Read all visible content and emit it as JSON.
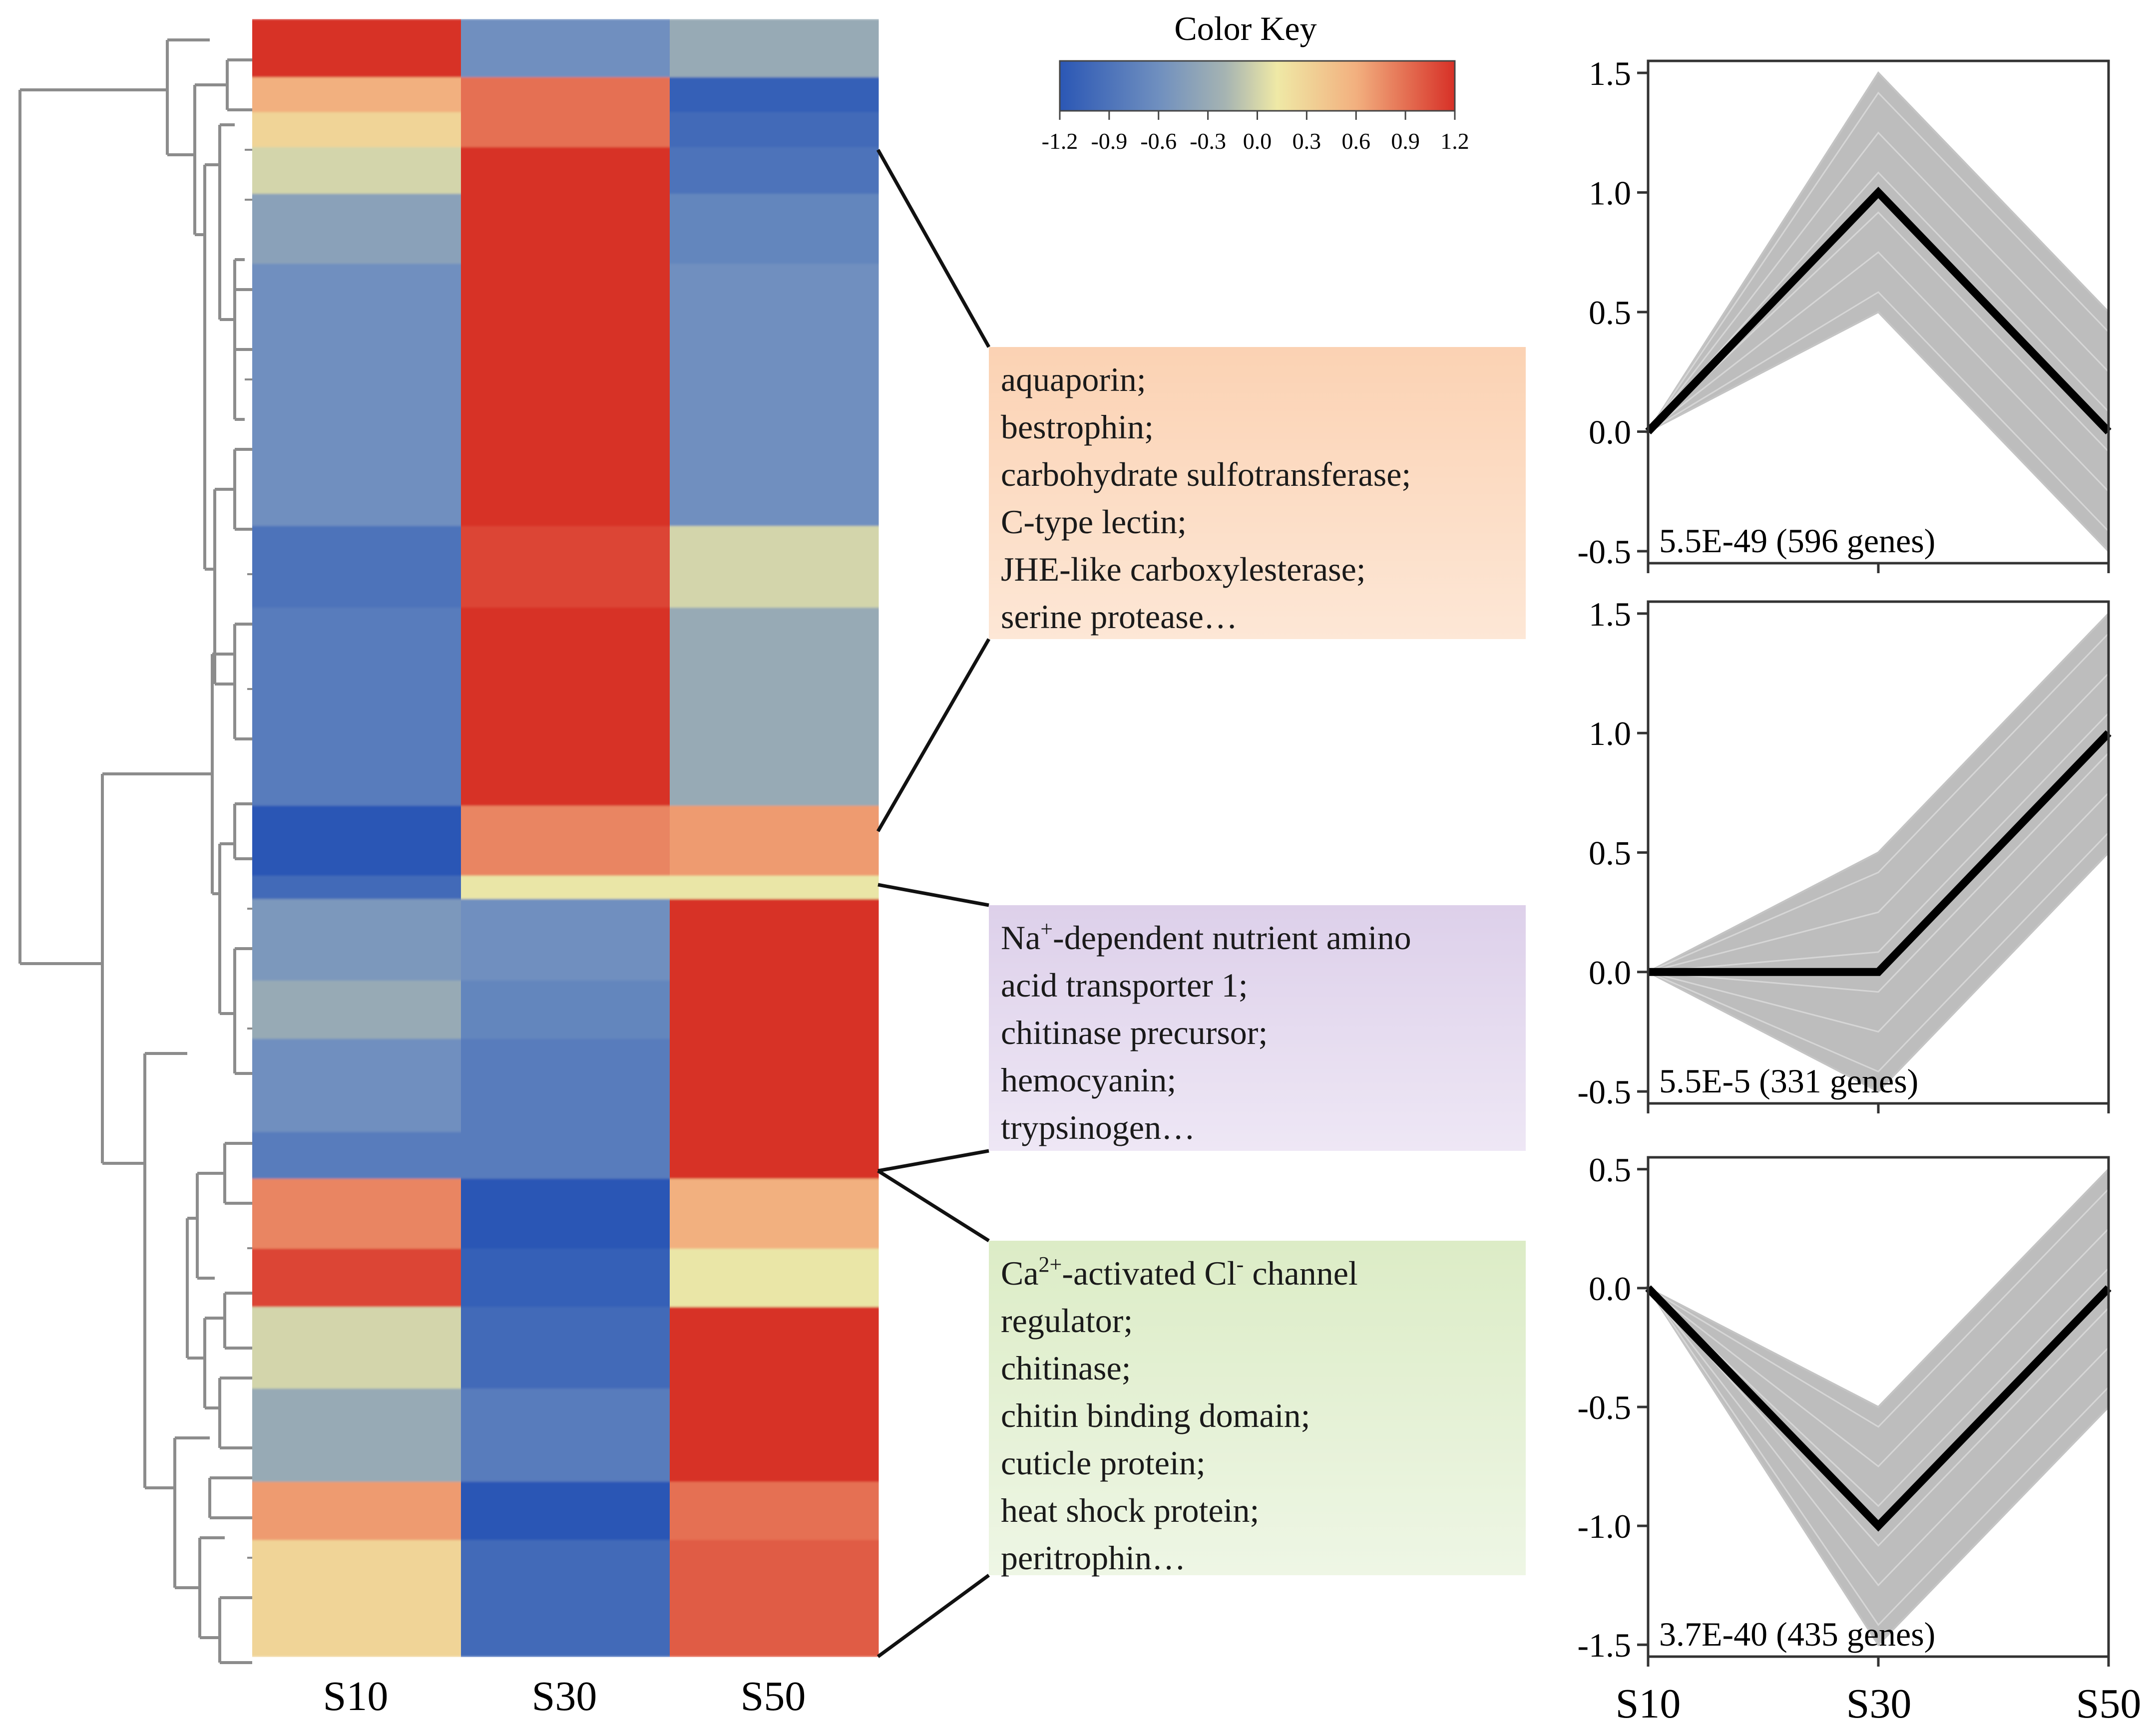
{
  "chart_data": [
    {
      "type": "heatmap",
      "title": "",
      "columns": [
        "S10",
        "S30",
        "S50"
      ],
      "color_key": {
        "title": "Color Key",
        "ticks": [
          "-1.2",
          "-0.9",
          "-0.6",
          "-0.3",
          "0.0",
          "0.3",
          "0.6",
          "0.9",
          "1.2"
        ],
        "range": [
          -1.2,
          1.2
        ],
        "colors": [
          "#2b57b5",
          "#6f8fbf",
          "#a6b4b2",
          "#efe9a6",
          "#f2b07f",
          "#d73027"
        ]
      },
      "row_blocks": [
        {
          "rows": 10,
          "values": [
            1.2,
            -0.6,
            -0.3
          ]
        },
        {
          "rows": 6,
          "values": [
            0.6,
            0.9,
            -1.1
          ]
        },
        {
          "rows": 6,
          "values": [
            0.3,
            0.9,
            -1.0
          ]
        },
        {
          "rows": 8,
          "values": [
            0.0,
            1.2,
            -0.9
          ]
        },
        {
          "rows": 12,
          "values": [
            -0.4,
            1.2,
            -0.7
          ]
        },
        {
          "rows": 45,
          "values": [
            -0.6,
            1.2,
            -0.6
          ]
        },
        {
          "rows": 14,
          "values": [
            -0.9,
            1.1,
            0.0
          ]
        },
        {
          "rows": 34,
          "values": [
            -0.8,
            1.2,
            -0.3
          ]
        },
        {
          "rows": 12,
          "values": [
            -1.2,
            0.8,
            0.7
          ]
        },
        {
          "rows": 4,
          "values": [
            -1.0,
            0.1,
            0.1
          ]
        },
        {
          "rows": 14,
          "values": [
            -0.5,
            -0.6,
            1.2
          ]
        },
        {
          "rows": 10,
          "values": [
            -0.3,
            -0.7,
            1.2
          ]
        },
        {
          "rows": 16,
          "values": [
            -0.6,
            -0.8,
            1.2
          ]
        },
        {
          "rows": 8,
          "values": [
            -0.8,
            -0.8,
            1.2
          ]
        },
        {
          "rows": 12,
          "values": [
            0.8,
            -1.2,
            0.6
          ]
        },
        {
          "rows": 10,
          "values": [
            1.1,
            -1.1,
            0.1
          ]
        },
        {
          "rows": 14,
          "values": [
            0.0,
            -1.0,
            1.2
          ]
        },
        {
          "rows": 16,
          "values": [
            -0.3,
            -0.8,
            1.2
          ]
        },
        {
          "rows": 10,
          "values": [
            0.7,
            -1.2,
            0.9
          ]
        },
        {
          "rows": 20,
          "values": [
            0.3,
            -1.0,
            1.0
          ]
        }
      ]
    },
    {
      "type": "line",
      "panel": "cluster-1",
      "x": [
        "S10",
        "S30",
        "S50"
      ],
      "mean_profile": [
        0.0,
        1.0,
        0.0
      ],
      "envelope_upper": [
        0.0,
        1.5,
        0.5
      ],
      "envelope_lower": [
        0.0,
        0.5,
        -0.5
      ],
      "yticks": [
        "1.5",
        "1.0",
        "0.5",
        "0.0",
        "-0.5"
      ],
      "ylim": [
        -0.55,
        1.55
      ],
      "annotation": "5.5E-49 (596 genes)"
    },
    {
      "type": "line",
      "panel": "cluster-2",
      "x": [
        "S10",
        "S30",
        "S50"
      ],
      "mean_profile": [
        0.0,
        0.0,
        1.0
      ],
      "envelope_upper": [
        0.0,
        0.5,
        1.5
      ],
      "envelope_lower": [
        0.0,
        -0.5,
        0.5
      ],
      "yticks": [
        "1.5",
        "1.0",
        "0.5",
        "0.0",
        "-0.5"
      ],
      "ylim": [
        -0.55,
        1.55
      ],
      "annotation": "5.5E-5 (331 genes)"
    },
    {
      "type": "line",
      "panel": "cluster-3",
      "x": [
        "S10",
        "S30",
        "S50"
      ],
      "mean_profile": [
        0.0,
        -1.0,
        0.0
      ],
      "envelope_upper": [
        0.0,
        -0.5,
        0.5
      ],
      "envelope_lower": [
        0.0,
        -1.5,
        -0.5
      ],
      "yticks": [
        "0.5",
        "0.0",
        "-0.5",
        "-1.0",
        "-1.5"
      ],
      "ylim": [
        -1.55,
        0.55
      ],
      "annotation": "3.7E-40 (435 genes)"
    }
  ],
  "gene_boxes": {
    "box1": [
      "aquaporin;",
      "bestrophin;",
      "carbohydrate sulfotransferase;",
      "C-type lectin;",
      "JHE-like carboxylesterase;",
      "serine protease…"
    ],
    "box2": {
      "line1_pre": "Na",
      "line1_sup": "+",
      "line1_post": "-dependent nutrient amino",
      "lines": [
        "acid transporter 1;",
        "chitinase precursor;",
        "hemocyanin;",
        "trypsinogen…"
      ]
    },
    "box3": {
      "line1_pre": "Ca",
      "line1_sup1": "2+",
      "line1_mid": "-activated Cl",
      "line1_sup2": "-",
      "line1_post": " channel",
      "lines": [
        "regulator;",
        "chitinase;",
        "chitin binding domain;",
        "cuticle protein;",
        "heat shock protein;",
        "peritrophin…"
      ]
    }
  }
}
